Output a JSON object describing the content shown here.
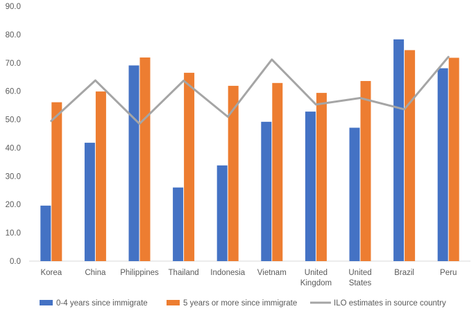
{
  "chart_data": {
    "type": "bar",
    "title": "",
    "xlabel": "",
    "ylabel": "",
    "ylim": [
      0,
      90
    ],
    "yticks": [
      "0.0",
      "10.0",
      "20.0",
      "30.0",
      "40.0",
      "50.0",
      "60.0",
      "70.0",
      "80.0",
      "90.0"
    ],
    "grid": false,
    "legend_position": "bottom",
    "categories": [
      [
        "Korea"
      ],
      [
        "China"
      ],
      [
        "Philippines"
      ],
      [
        "Thailand"
      ],
      [
        "Indonesia"
      ],
      [
        "Vietnam"
      ],
      [
        "United",
        "Kingdom"
      ],
      [
        "United",
        "States"
      ],
      [
        "Brazil"
      ],
      [
        "Peru"
      ]
    ],
    "series": [
      {
        "name": "0-4 years since immigrate",
        "kind": "bar",
        "color": "#4472C4",
        "values": [
          19.6,
          41.8,
          69.1,
          26.0,
          33.8,
          49.2,
          52.8,
          47.1,
          78.3,
          68.1
        ]
      },
      {
        "name": "5 years or more since immigrate",
        "kind": "bar",
        "color": "#ED7D31",
        "values": [
          56.1,
          59.9,
          71.9,
          66.5,
          61.9,
          62.9,
          59.4,
          63.6,
          74.5,
          71.8
        ]
      },
      {
        "name": "ILO estimates in source country",
        "kind": "line",
        "color": "#A5A5A5",
        "values": [
          49.5,
          63.8,
          48.5,
          63.7,
          51.0,
          71.2,
          55.3,
          57.6,
          53.6,
          72.1
        ]
      }
    ]
  }
}
